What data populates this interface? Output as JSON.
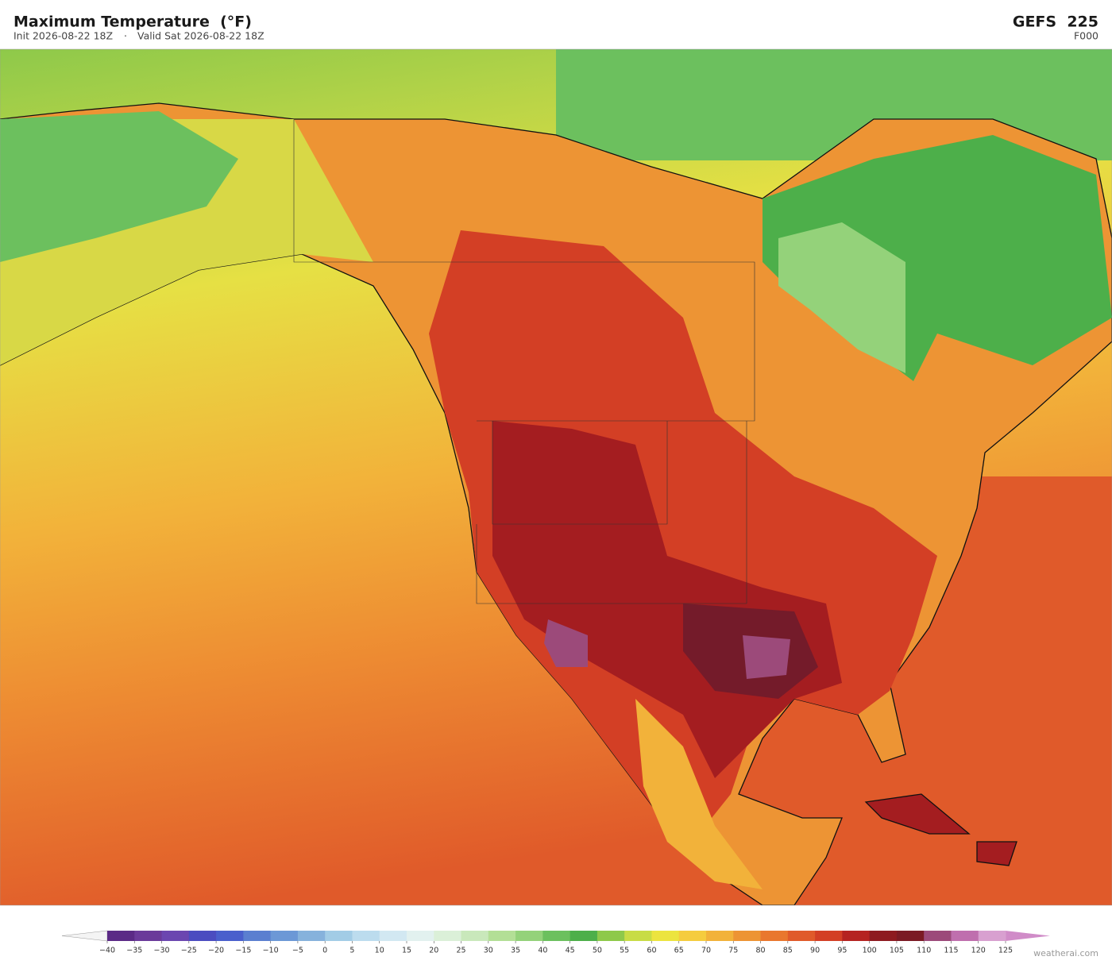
{
  "header": {
    "title": "Maximum Temperature  (°F)",
    "init": "Init 2026-08-22 18Z",
    "separator": "·",
    "valid": "Valid Sat 2026-08-22 18Z",
    "model": "GEFS  225",
    "forecast_hour": "F000"
  },
  "colorbar": {
    "ticks": [
      {
        "value": -40,
        "label": "−40"
      },
      {
        "value": -35,
        "label": "−35"
      },
      {
        "value": -30,
        "label": "−30"
      },
      {
        "value": -25,
        "label": "−25"
      },
      {
        "value": -20,
        "label": "−20"
      },
      {
        "value": -15,
        "label": "−15"
      },
      {
        "value": -10,
        "label": "−10"
      },
      {
        "value": -5,
        "label": "−5"
      },
      0,
      5,
      10,
      15,
      20,
      25,
      30,
      35,
      40,
      45,
      50,
      55,
      60,
      65,
      70,
      75,
      80,
      85,
      90,
      95,
      100,
      105,
      110,
      115,
      120,
      125
    ],
    "colors": [
      "#5b2a86",
      "#6b3a9a",
      "#6b46b0",
      "#4b4cc0",
      "#4a5fcc",
      "#5b7fd0",
      "#6c98d6",
      "#86b2dc",
      "#a2cce6",
      "#bcdcee",
      "#d2e8f2",
      "#e2f1ef",
      "#dbf0d8",
      "#c9e8bb",
      "#b3df96",
      "#94d27a",
      "#6cc05e",
      "#4daf4a",
      "#8ec94a",
      "#c8dc45",
      "#ece43f",
      "#f5cc3e",
      "#f2b23a",
      "#ed9434",
      "#e9772e",
      "#e05a2a",
      "#d33f25",
      "#b52321",
      "#8e1a20",
      "#7b1a24",
      "#9c4a7a",
      "#bf6fae",
      "#d8a0d0"
    ],
    "extend_low_color": "#f4f4f4",
    "extend_high_color": "#d08cc8"
  },
  "footer": {
    "credit": "weatherai.com"
  }
}
